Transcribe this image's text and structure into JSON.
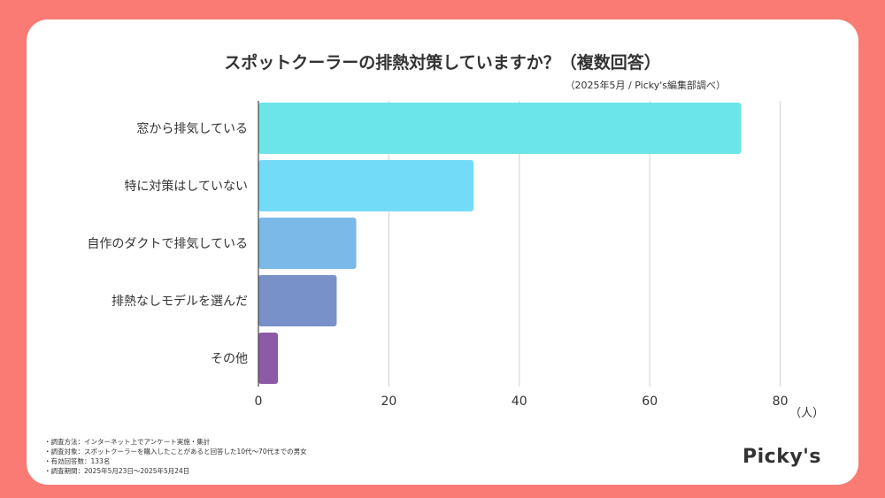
{
  "chart_data": {
    "type": "bar",
    "orientation": "horizontal",
    "title": "スポットクーラーの排熱対策していますか？（複数回答）",
    "subtitle": "（2025年5月 / Picky's編集部調べ）",
    "categories": [
      "窓から排気している",
      "特に対策はしていない",
      "自作のダクトで排気している",
      "排熱なしモデルを選んだ",
      "その他"
    ],
    "values": [
      74,
      33,
      15,
      12,
      3
    ],
    "colors": [
      "#6ce5e8",
      "#72dcf8",
      "#7ab9e8",
      "#7891c8",
      "#8d5aa6"
    ],
    "x_ticks": [
      "0",
      "20",
      "40",
      "60",
      "80"
    ],
    "xlim": [
      0,
      80
    ],
    "unit": "（人）",
    "grid": true
  },
  "notes": [
    "・調査方法：インターネット上でアンケート実施・集計",
    "・調査対象：スポットクーラーを購入したことがあると回答した10代〜70代までの男女",
    "・有効回答数：133名",
    "・調査期間：2025年5月23日〜2025年5月24日"
  ],
  "logo": "Picky's"
}
